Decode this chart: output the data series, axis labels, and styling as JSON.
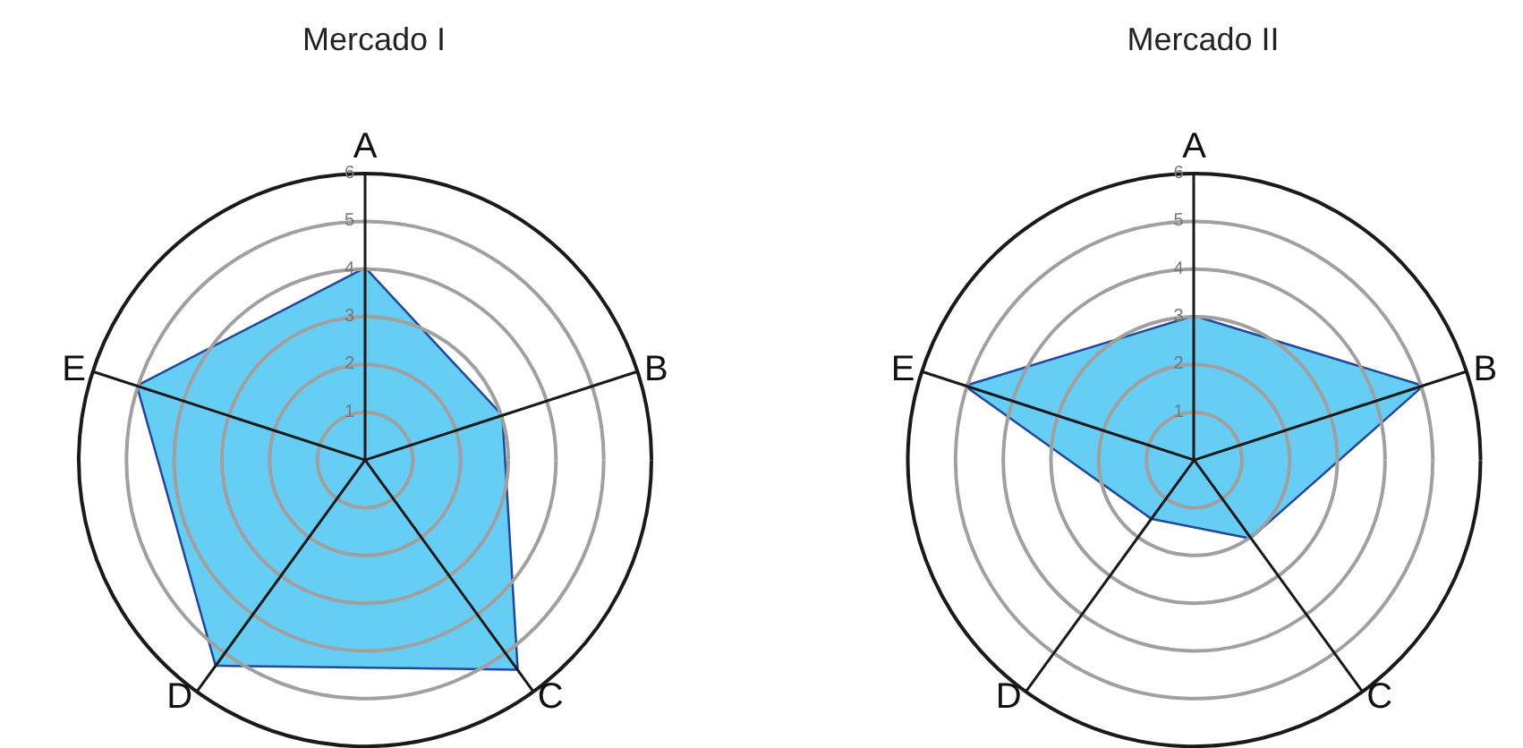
{
  "chart_data": [
    {
      "type": "radar",
      "title": "Mercado I",
      "categories": [
        "A",
        "B",
        "C",
        "D",
        "E"
      ],
      "ylim": [
        0,
        6
      ],
      "yticks": [
        1,
        2,
        3,
        4,
        5,
        6
      ],
      "marker": "none",
      "series": [
        {
          "color": "#66cdf4",
          "values": [
            4,
            3,
            5.4,
            5.3,
            5
          ]
        }
      ]
    },
    {
      "type": "radar",
      "title": "Mercado II",
      "categories": [
        "A",
        "B",
        "C",
        "D",
        "E"
      ],
      "ylim": [
        0,
        6
      ],
      "yticks": [
        1,
        2,
        3,
        4,
        5,
        6
      ],
      "marker": "none",
      "series": [
        {
          "color": "#66cdf4",
          "values": [
            3,
            5,
            2,
            1.5,
            5
          ]
        }
      ]
    }
  ]
}
